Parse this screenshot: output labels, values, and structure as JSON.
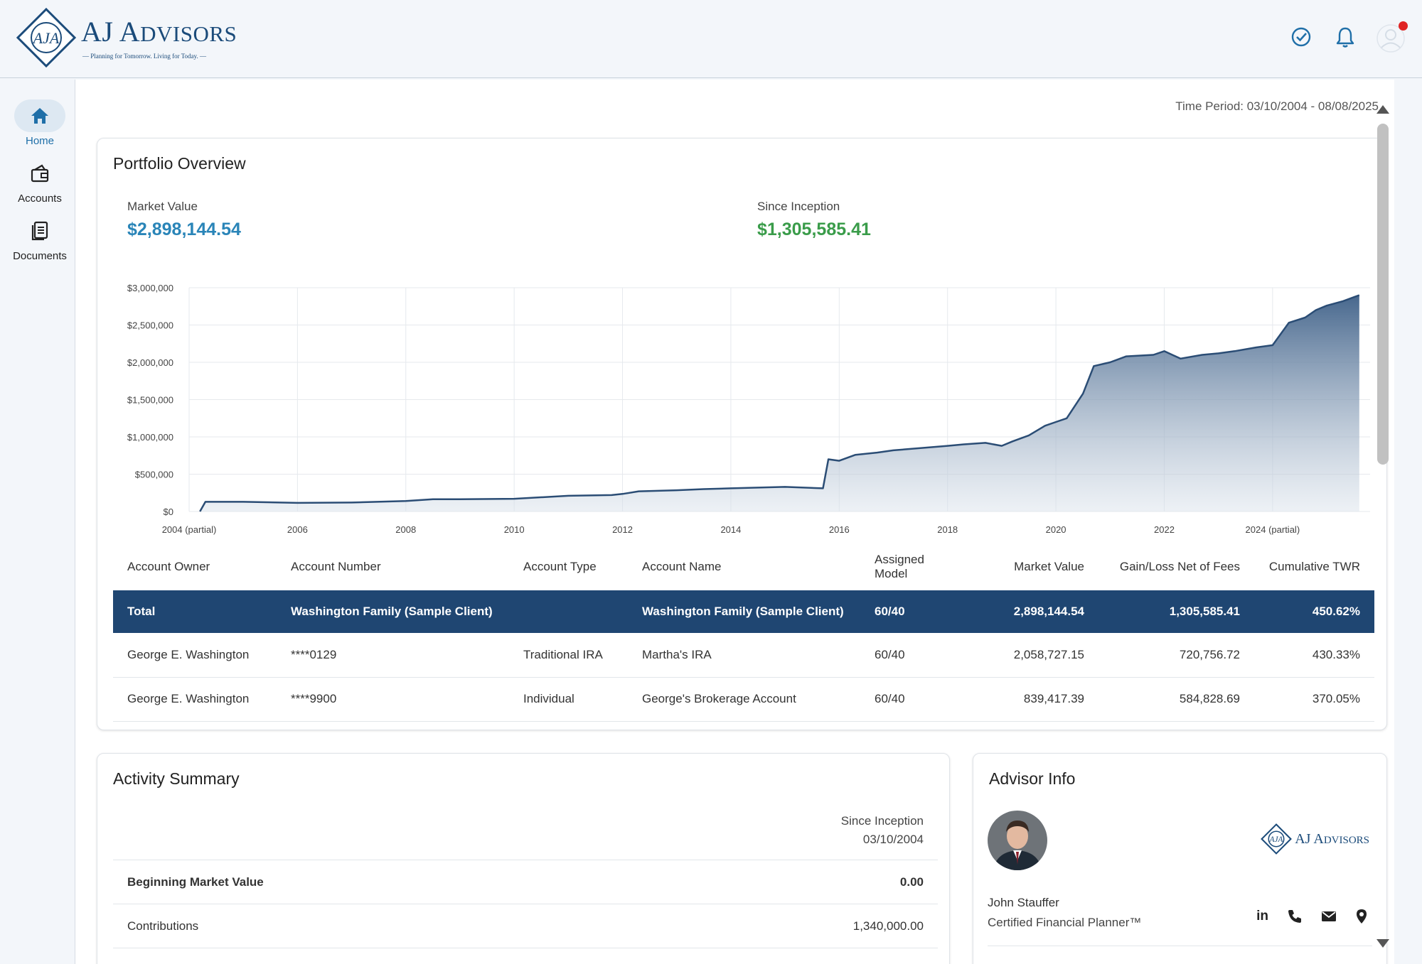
{
  "header": {
    "brand_title_prefix": "AJ ",
    "brand_title_a": "A",
    "brand_title_rest": "DVISORS",
    "brand_tagline": "— Planning for Tomorrow. Living for Today. —"
  },
  "sidebar": {
    "items": [
      {
        "label": "Home",
        "icon": "home-icon"
      },
      {
        "label": "Accounts",
        "icon": "wallet-icon"
      },
      {
        "label": "Documents",
        "icon": "documents-icon"
      }
    ]
  },
  "time_period": "Time Period: 03/10/2004 - 08/08/2025",
  "portfolio": {
    "title": "Portfolio Overview",
    "market_value_label": "Market Value",
    "market_value": "$2,898,144.54",
    "since_inception_label": "Since Inception",
    "since_inception": "$1,305,585.41"
  },
  "colors": {
    "accent_blue": "#2a85b8",
    "gain_green": "#3a9c4a",
    "chart_line": "#2b4d75",
    "table_header": "#1f4672"
  },
  "chart_data": {
    "type": "area",
    "title": "",
    "xlabel": "",
    "ylabel": "",
    "ylim": [
      0,
      3000000
    ],
    "y_ticks": [
      "$3,000,000",
      "$2,500,000",
      "$2,000,000",
      "$1,500,000",
      "$1,000,000",
      "$500,000",
      "$0"
    ],
    "x_ticks": [
      "2004 (partial)",
      "2006",
      "2008",
      "2010",
      "2012",
      "2014",
      "2016",
      "2018",
      "2020",
      "2022",
      "2024 (partial)"
    ],
    "grid": true,
    "series": [
      {
        "x": [
          2004.2,
          2004.3,
          2005,
          2006,
          2007,
          2008,
          2008.5,
          2009,
          2010,
          2011,
          2011.8,
          2012,
          2012.3,
          2013,
          2013.5,
          2014,
          2014.5,
          2015,
          2015.7,
          2015.8,
          2016,
          2016.3,
          2016.7,
          2017,
          2017.5,
          2018,
          2018.3,
          2018.7,
          2019,
          2019.2,
          2019.5,
          2019.8,
          2020,
          2020.2,
          2020.5,
          2020.7,
          2021,
          2021.3,
          2021.8,
          2022,
          2022.3,
          2022.7,
          2023,
          2023.3,
          2023.7,
          2024,
          2024.3,
          2024.6,
          2024.8,
          2025,
          2025.3,
          2025.6
        ],
        "values": [
          0,
          130000,
          130000,
          115000,
          120000,
          140000,
          165000,
          165000,
          170000,
          210000,
          220000,
          235000,
          270000,
          285000,
          300000,
          310000,
          320000,
          330000,
          310000,
          700000,
          680000,
          760000,
          790000,
          820000,
          850000,
          880000,
          900000,
          920000,
          880000,
          940000,
          1020000,
          1150000,
          1200000,
          1250000,
          1580000,
          1950000,
          2000000,
          2080000,
          2100000,
          2150000,
          2050000,
          2100000,
          2120000,
          2150000,
          2200000,
          2230000,
          2530000,
          2600000,
          2700000,
          2760000,
          2820000,
          2900000
        ]
      }
    ]
  },
  "accounts_table": {
    "columns": [
      "Account Owner",
      "Account Number",
      "Account Type",
      "Account Name",
      "Assigned Model",
      "Market Value",
      "Gain/Loss Net of Fees",
      "Cumulative TWR"
    ],
    "total": {
      "owner": "Total",
      "number": "Washington Family (Sample Client)",
      "type": "",
      "name": "Washington Family (Sample Client)",
      "model": "60/40",
      "market_value": "2,898,144.54",
      "gain_loss": "1,305,585.41",
      "twr": "450.62%"
    },
    "rows": [
      {
        "owner": "George E. Washington",
        "number": "****0129",
        "type": "Traditional IRA",
        "name": "Martha's IRA",
        "model": "60/40",
        "market_value": "2,058,727.15",
        "gain_loss": "720,756.72",
        "twr": "430.33%"
      },
      {
        "owner": "George E. Washington",
        "number": "****9900",
        "type": "Individual",
        "name": "George's Brokerage Account",
        "model": "60/40",
        "market_value": "839,417.39",
        "gain_loss": "584,828.69",
        "twr": "370.05%"
      }
    ]
  },
  "activity": {
    "title": "Activity Summary",
    "period_label": "Since Inception",
    "period_date": "03/10/2004",
    "rows": [
      {
        "label": "Beginning Market Value",
        "value": "0.00",
        "bold": true
      },
      {
        "label": "Contributions",
        "value": "1,340,000.00",
        "bold": false
      }
    ]
  },
  "advisor": {
    "title": "Advisor Info",
    "name": "John Stauffer",
    "role": "Certified Financial Planner™",
    "contact_icons": [
      "linkedin-icon",
      "phone-icon",
      "email-icon",
      "location-icon"
    ],
    "logo_title_prefix": "AJ ",
    "logo_title_a": "A",
    "logo_title_rest": "DVISORS"
  }
}
